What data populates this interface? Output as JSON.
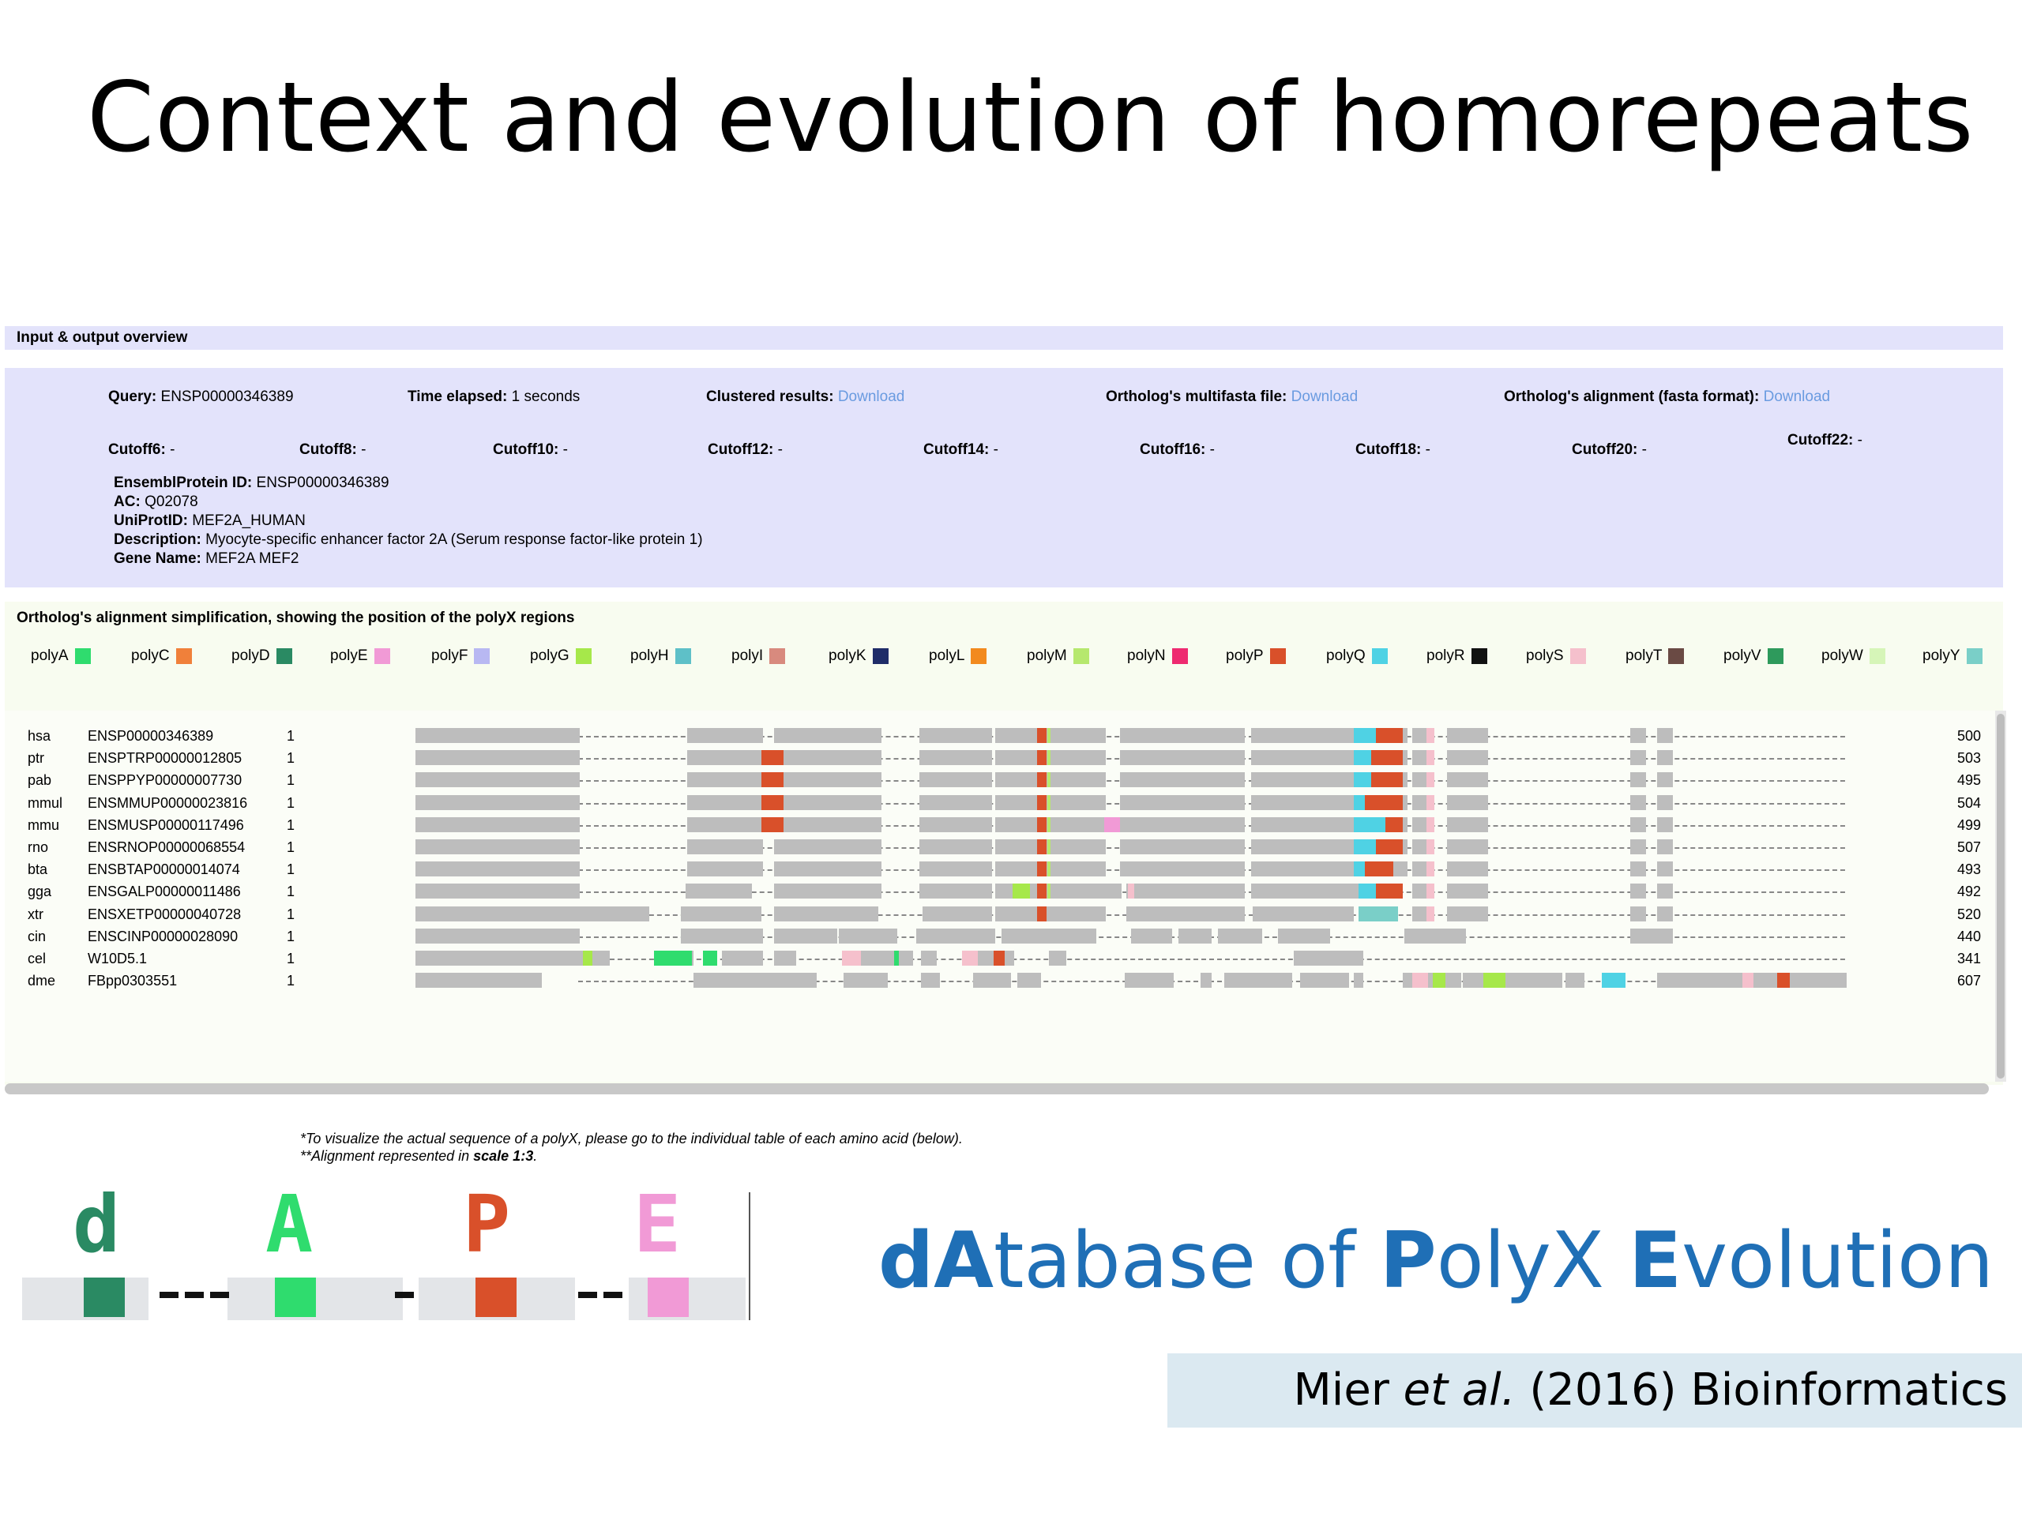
{
  "slide": {
    "title": "Context and evolution of homorepeats"
  },
  "io": {
    "header": "Input & output overview",
    "query_label": "Query:",
    "query_value": "ENSP00000346389",
    "time_label": "Time elapsed:",
    "time_value": "1 seconds",
    "clustered_label": "Clustered results:",
    "clustered_link": "Download",
    "multifasta_label": "Ortholog's multifasta file:",
    "multifasta_link": "Download",
    "alignment_label": "Ortholog's alignment (fasta format):",
    "alignment_link": "Download",
    "cutoffs": [
      {
        "label": "Cutoff6:",
        "value": "-"
      },
      {
        "label": "Cutoff8:",
        "value": "-"
      },
      {
        "label": "Cutoff10:",
        "value": "-"
      },
      {
        "label": "Cutoff12:",
        "value": "-"
      },
      {
        "label": "Cutoff14:",
        "value": "-"
      },
      {
        "label": "Cutoff16:",
        "value": "-"
      },
      {
        "label": "Cutoff18:",
        "value": "-"
      },
      {
        "label": "Cutoff20:",
        "value": "-"
      },
      {
        "label": "Cutoff22:",
        "value": "-"
      }
    ],
    "protein": [
      {
        "label": "EnsemblProtein ID:",
        "value": "ENSP00000346389"
      },
      {
        "label": "AC:",
        "value": "Q02078"
      },
      {
        "label": "UniProtID:",
        "value": "MEF2A_HUMAN"
      },
      {
        "label": "Description:",
        "value": "Myocyte-specific enhancer factor 2A (Serum response factor-like protein 1)"
      },
      {
        "label": "Gene Name:",
        "value": "MEF2A MEF2"
      }
    ]
  },
  "orthologs": {
    "title": "Ortholog's alignment simplification, showing the position of the polyX regions",
    "legend": [
      {
        "label": "polyA",
        "color": "#2fdc6e"
      },
      {
        "label": "polyC",
        "color": "#f0803a"
      },
      {
        "label": "polyD",
        "color": "#2a8a63"
      },
      {
        "label": "polyE",
        "color": "#f19ad6"
      },
      {
        "label": "polyF",
        "color": "#b8b8f2"
      },
      {
        "label": "polyG",
        "color": "#a6e84a"
      },
      {
        "label": "polyH",
        "color": "#5ec0c8"
      },
      {
        "label": "polyI",
        "color": "#d88a7e"
      },
      {
        "label": "polyK",
        "color": "#1f2c68"
      },
      {
        "label": "polyL",
        "color": "#f28a1e"
      },
      {
        "label": "polyM",
        "color": "#b6e86e"
      },
      {
        "label": "polyN",
        "color": "#ee2a70"
      },
      {
        "label": "polyP",
        "color": "#d9502a"
      },
      {
        "label": "polyQ",
        "color": "#4fd2e4"
      },
      {
        "label": "polyR",
        "color": "#111111"
      },
      {
        "label": "polyS",
        "color": "#f5c0cc"
      },
      {
        "label": "polyT",
        "color": "#6a4a44"
      },
      {
        "label": "polyV",
        "color": "#2e9a5c"
      },
      {
        "label": "polyW",
        "color": "#d6f5b8"
      },
      {
        "label": "polyY",
        "color": "#7acfc8"
      }
    ],
    "rows": [
      {
        "species": "hsa",
        "id": "ENSP00000346389",
        "start": "1",
        "length": "500"
      },
      {
        "species": "ptr",
        "id": "ENSPTRP00000012805",
        "start": "1",
        "length": "503"
      },
      {
        "species": "pab",
        "id": "ENSPPYP00000007730",
        "start": "1",
        "length": "495"
      },
      {
        "species": "mmul",
        "id": "ENSMMUP00000023816",
        "start": "1",
        "length": "504"
      },
      {
        "species": "mmu",
        "id": "ENSMUSP00000117496",
        "start": "1",
        "length": "499"
      },
      {
        "species": "rno",
        "id": "ENSRNOP00000068554",
        "start": "1",
        "length": "507"
      },
      {
        "species": "bta",
        "id": "ENSBTAP00000014074",
        "start": "1",
        "length": "493"
      },
      {
        "species": "gga",
        "id": "ENSGALP00000011486",
        "start": "1",
        "length": "492"
      },
      {
        "species": "xtr",
        "id": "ENSXETP00000040728",
        "start": "1",
        "length": "520"
      },
      {
        "species": "cin",
        "id": "ENSCINP00000028090",
        "start": "1",
        "length": "440"
      },
      {
        "species": "cel",
        "id": "W10D5.1",
        "start": "1",
        "length": "341"
      },
      {
        "species": "dme",
        "id": "FBpp0303551",
        "start": "1",
        "length": "607"
      }
    ],
    "note1": "*To visualize the actual sequence of a polyX, please go to the individual table of each amino acid (below).",
    "note2_prefix": "**Alignment represented in ",
    "note2_bold": "scale 1:3",
    "note2_suffix": "."
  },
  "logo": {
    "letters": [
      {
        "char": "d",
        "color": "#2a8a63"
      },
      {
        "char": "A",
        "color": "#2fdc6e"
      },
      {
        "char": "P",
        "color": "#d9502a"
      },
      {
        "char": "E",
        "color": "#f19ad6"
      }
    ]
  },
  "tagline": {
    "p1_bold": "dA",
    "p1": "tabase of ",
    "p2_bold": "P",
    "p2": "olyX ",
    "p3_bold": "E",
    "p3": "volution"
  },
  "citation": {
    "author": "Mier ",
    "etal": "et al.",
    "rest": " (2016) Bioinformatics"
  }
}
